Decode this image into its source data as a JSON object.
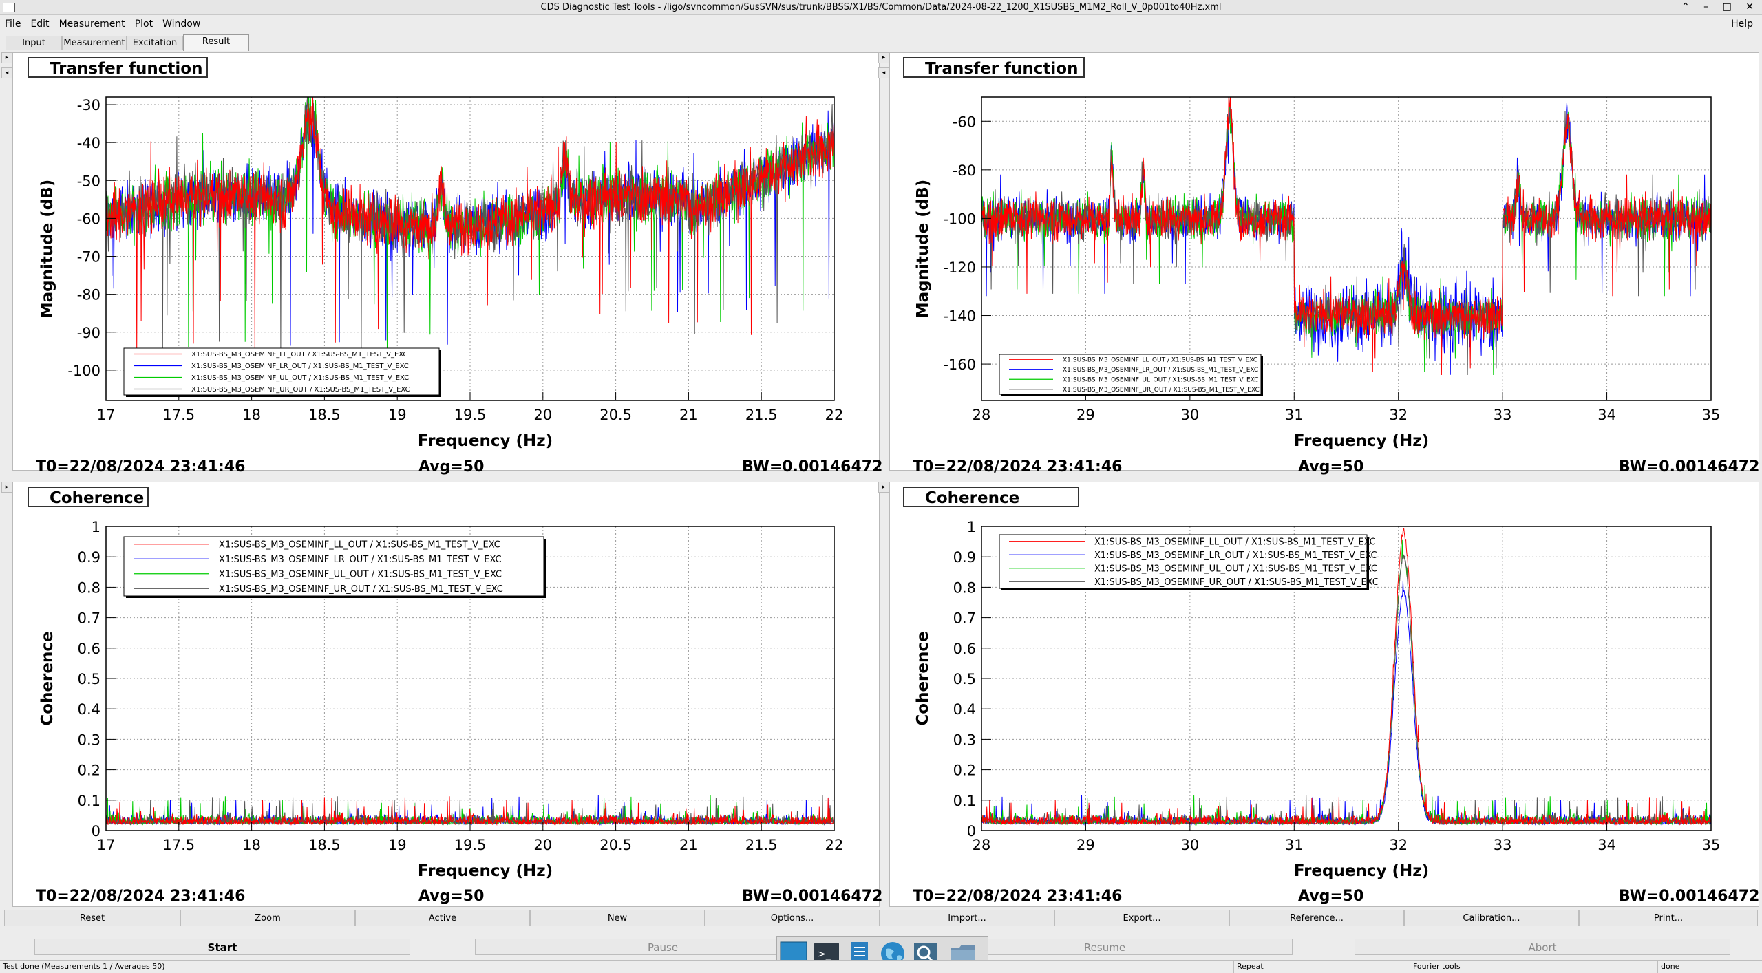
{
  "window": {
    "title": "CDS Diagnostic Test Tools - /ligo/svncommon/SusSVN/sus/trunk/BBSS/X1/BS/Common/Data/2024-08-22_1200_X1SUSBS_M1M2_Roll_V_0p001to40Hz.xml"
  },
  "menu": {
    "items": [
      "File",
      "Edit",
      "Measurement",
      "Plot",
      "Window"
    ],
    "help": "Help"
  },
  "tabs": [
    "Input",
    "Measurement",
    "Excitation",
    "Result"
  ],
  "legend_entries": [
    "X1:SUS-BS_M3_OSEMINF_LL_OUT / X1:SUS-BS_M1_TEST_V_EXC",
    "X1:SUS-BS_M3_OSEMINF_LR_OUT / X1:SUS-BS_M1_TEST_V_EXC",
    "X1:SUS-BS_M3_OSEMINF_UL_OUT / X1:SUS-BS_M1_TEST_V_EXC",
    "X1:SUS-BS_M3_OSEMINF_UR_OUT / X1:SUS-BS_M1_TEST_V_EXC"
  ],
  "series_colors": [
    "#ff0000",
    "#0000ff",
    "#00cc00",
    "#555555"
  ],
  "panels": [
    {
      "title": "Transfer function",
      "t0": "T0=22/08/2024 23:41:46",
      "avg": "Avg=50",
      "bw": "BW=0.00146472"
    },
    {
      "title": "Transfer function",
      "t0": "T0=22/08/2024 23:41:46",
      "avg": "Avg=50",
      "bw": "BW=0.00146472"
    },
    {
      "title": "Coherence",
      "t0": "T0=22/08/2024 23:41:46",
      "avg": "Avg=50",
      "bw": "BW=0.00146472"
    },
    {
      "title": "Coherence",
      "t0": "T0=22/08/2024 23:41:46",
      "avg": "Avg=50",
      "bw": "BW=0.00146472"
    }
  ],
  "chart_data": [
    {
      "type": "line",
      "title": "Transfer function",
      "xlabel": "Frequency (Hz)",
      "ylabel": "Magnitude (dB)",
      "xlim": [
        17,
        22
      ],
      "ylim": [
        -108,
        -28
      ],
      "xticks": [
        17,
        17.5,
        18,
        18.5,
        19,
        19.5,
        20,
        20.5,
        21,
        21.5,
        22
      ],
      "yticks": [
        -100,
        -90,
        -80,
        -70,
        -60,
        -50,
        -40,
        -30
      ],
      "grid": true,
      "legend_position": "bottom-left",
      "series_names_ref": "legend_entries",
      "description_points": {
        "x": [
          17,
          17.5,
          18,
          18.4,
          18.8,
          19.3,
          19.6,
          20.1,
          20.5,
          21,
          21.5,
          22
        ],
        "y": [
          -60,
          -57,
          -50,
          -33,
          -52,
          -55,
          -62,
          -50,
          -58,
          -58,
          -47,
          -40
        ]
      }
    },
    {
      "type": "line",
      "title": "Transfer function",
      "xlabel": "Frequency (Hz)",
      "ylabel": "Magnitude (dB)",
      "xlim": [
        28,
        35
      ],
      "ylim": [
        -175,
        -50
      ],
      "xticks": [
        28,
        29,
        30,
        31,
        32,
        33,
        34,
        35
      ],
      "yticks": [
        -160,
        -140,
        -120,
        -100,
        -80,
        -60
      ],
      "grid": true,
      "legend_position": "bottom-left",
      "series_names_ref": "legend_entries",
      "description_points": {
        "x": [
          28,
          29,
          29.3,
          30,
          30.38,
          30.9,
          31,
          31.5,
          32.05,
          32.5,
          33,
          33.6,
          34,
          35
        ],
        "y": [
          -100,
          -98,
          -72,
          -98,
          -55,
          -100,
          -140,
          -140,
          -120,
          -138,
          -138,
          -60,
          -100,
          -98
        ]
      }
    },
    {
      "type": "line",
      "title": "Coherence",
      "xlabel": "Frequency (Hz)",
      "ylabel": "Coherence",
      "xlim": [
        17,
        22
      ],
      "ylim": [
        0,
        1
      ],
      "xticks": [
        17,
        17.5,
        18,
        18.5,
        19,
        19.5,
        20,
        20.5,
        21,
        21.5,
        22
      ],
      "yticks": [
        0,
        0.1,
        0.2,
        0.3,
        0.4,
        0.5,
        0.6,
        0.7,
        0.8,
        0.9,
        1
      ],
      "grid": true,
      "legend_position": "top-left",
      "series_names_ref": "legend_entries",
      "description_points": {
        "x": [
          17,
          19.5,
          22
        ],
        "y": [
          0.03,
          0.03,
          0.03
        ]
      }
    },
    {
      "type": "line",
      "title": "Coherence",
      "xlabel": "Frequency (Hz)",
      "ylabel": "Coherence",
      "xlim": [
        28,
        35
      ],
      "ylim": [
        0,
        1
      ],
      "xticks": [
        28,
        29,
        30,
        31,
        32,
        33,
        34,
        35
      ],
      "yticks": [
        0,
        0.1,
        0.2,
        0.3,
        0.4,
        0.5,
        0.6,
        0.7,
        0.8,
        0.9,
        1
      ],
      "grid": true,
      "legend_position": "top-left",
      "series_names_ref": "legend_entries",
      "description_points": {
        "x": [
          28,
          31,
          31.8,
          32.05,
          32.3,
          33,
          35
        ],
        "y": [
          0.03,
          0.03,
          0.15,
          0.97,
          0.15,
          0.03,
          0.03
        ]
      }
    }
  ],
  "toolbar": [
    "Reset",
    "Zoom",
    "Active",
    "New",
    "Options...",
    "Import...",
    "Export...",
    "Reference...",
    "Calibration...",
    "Print..."
  ],
  "controls": [
    "Start",
    "Pause",
    "Resume",
    "Abort"
  ],
  "status": {
    "message": "Test done (Measurements 1 / Averages 50)",
    "repeat": "Repeat",
    "tools": "Fourier tools",
    "state": "done"
  }
}
